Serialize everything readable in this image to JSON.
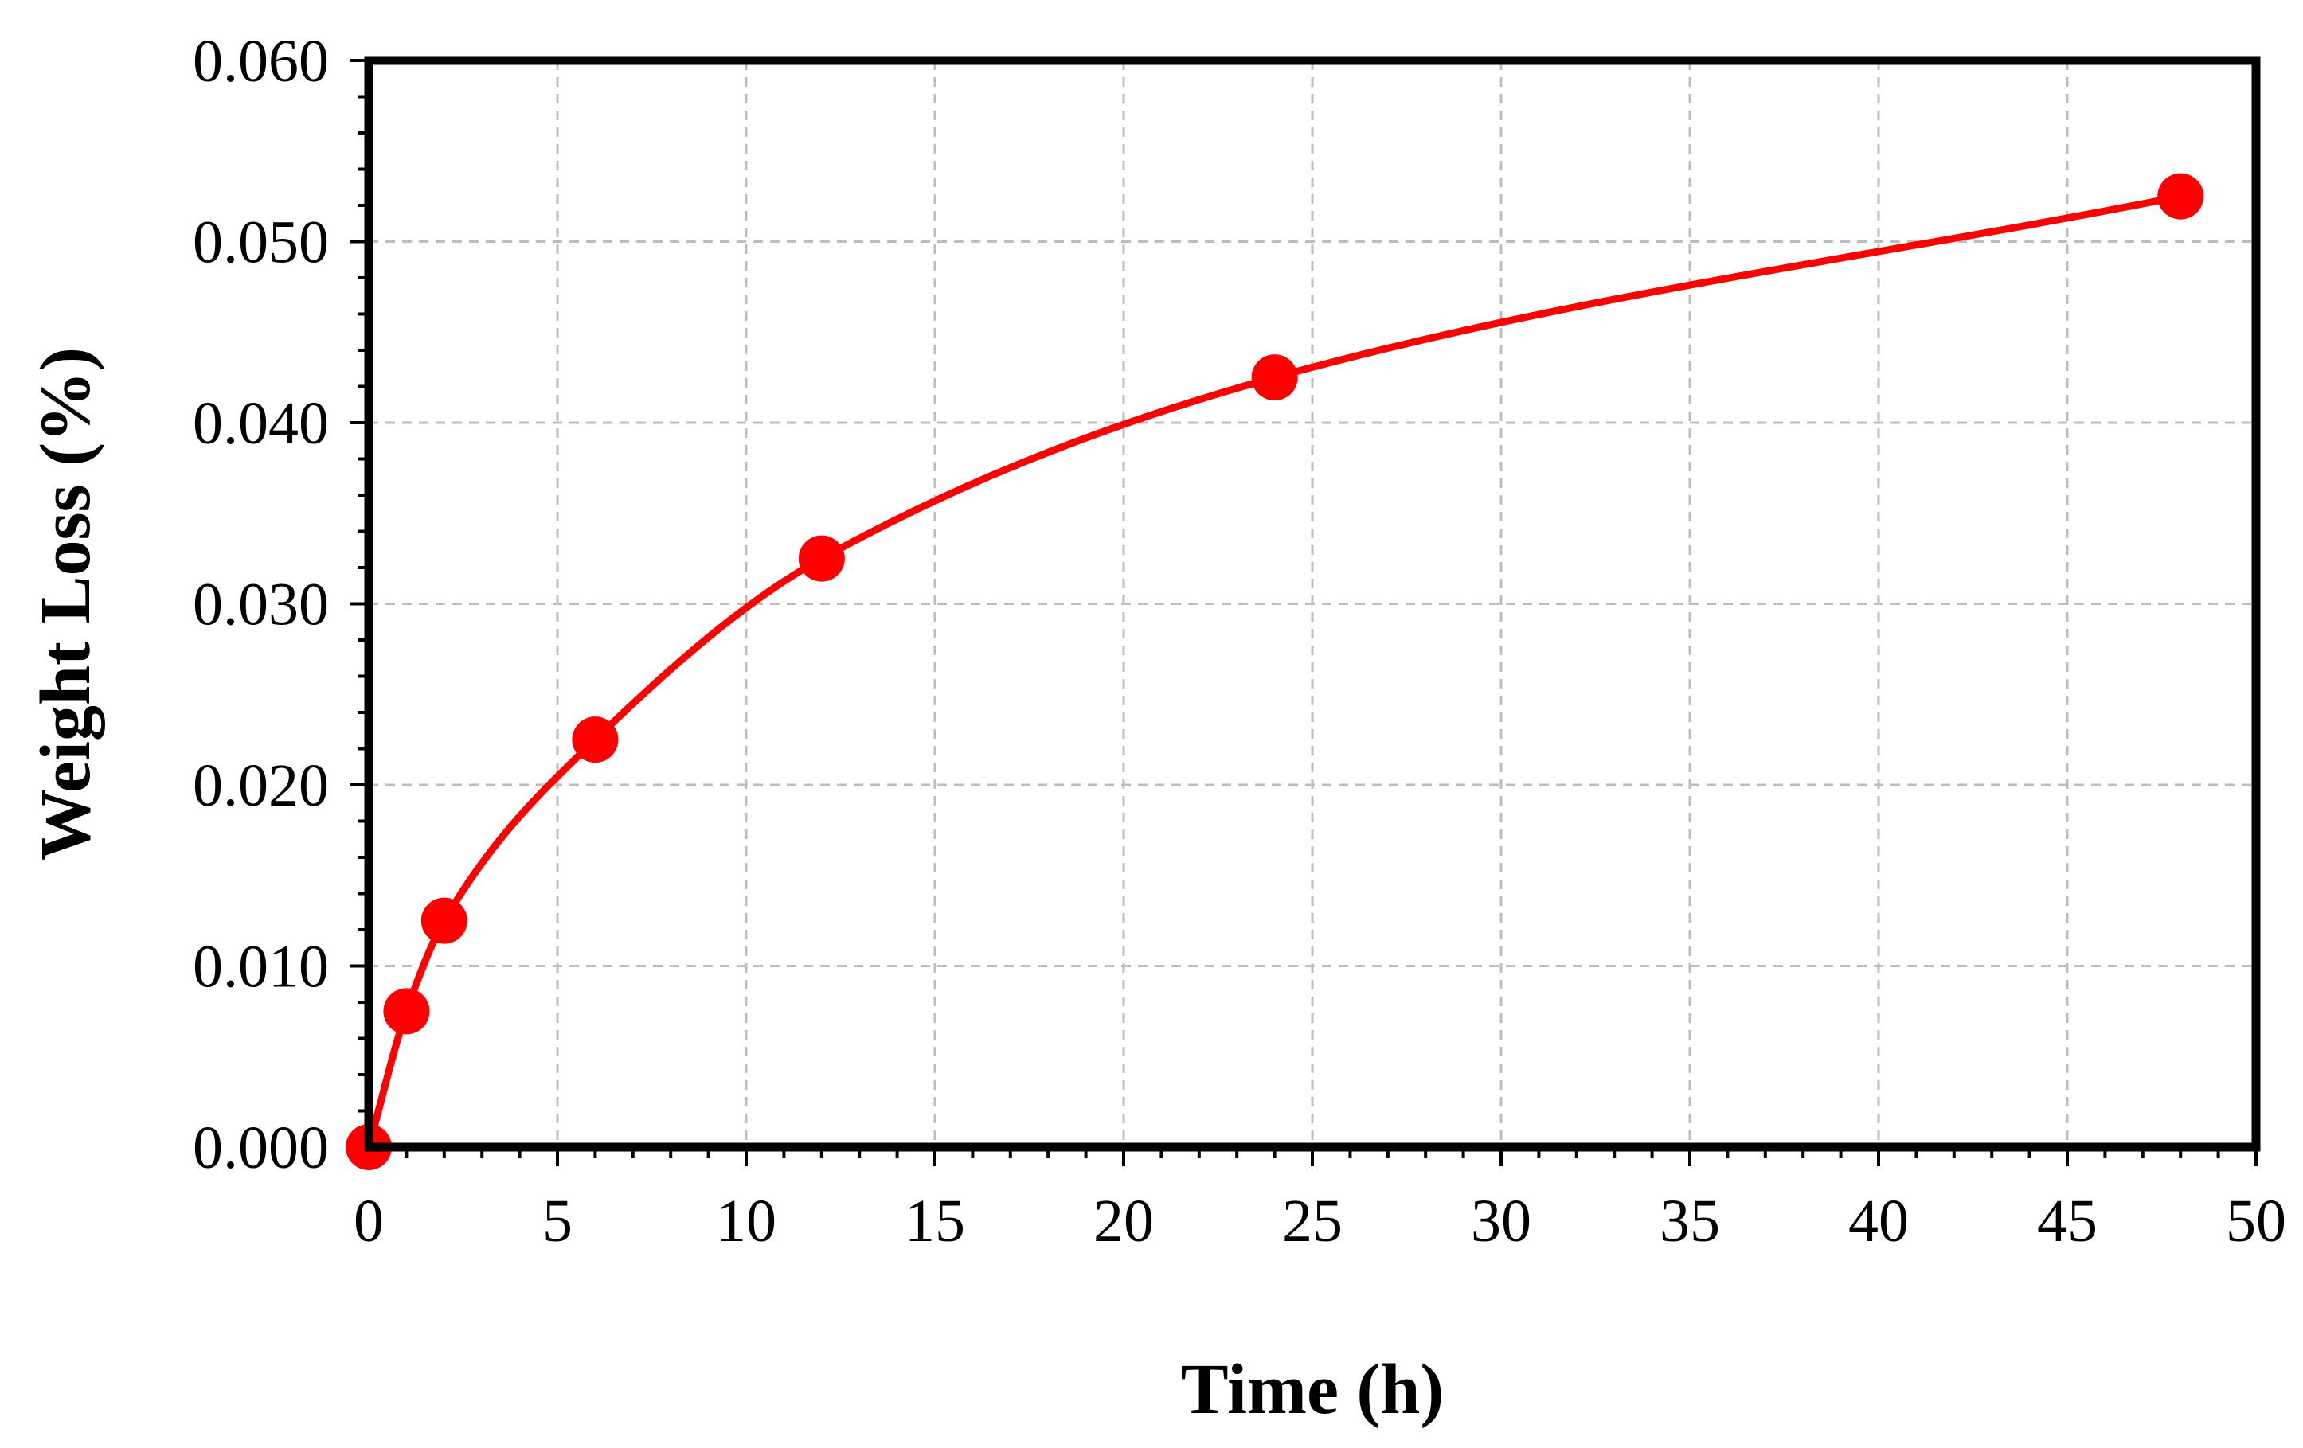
{
  "chart_data": {
    "type": "line",
    "title": "",
    "xlabel": "Time (h)",
    "ylabel": "Weight Loss (%)",
    "xlim": [
      0,
      50
    ],
    "ylim": [
      0,
      0.06
    ],
    "x_ticks": [
      "0",
      "5",
      "10",
      "15",
      "20",
      "25",
      "30",
      "35",
      "40",
      "45",
      "50"
    ],
    "y_ticks": [
      "0.000",
      "0.010",
      "0.020",
      "0.030",
      "0.040",
      "0.050",
      "0.060"
    ],
    "grid": true,
    "legend": "none",
    "series": [
      {
        "x": [
          0,
          1,
          2,
          6,
          12,
          24,
          48
        ],
        "y": [
          0.0,
          0.0075,
          0.0125,
          0.0225,
          0.0325,
          0.0425,
          0.0525
        ],
        "color": "#ff0000",
        "marker": "circle",
        "smooth": true
      }
    ]
  }
}
